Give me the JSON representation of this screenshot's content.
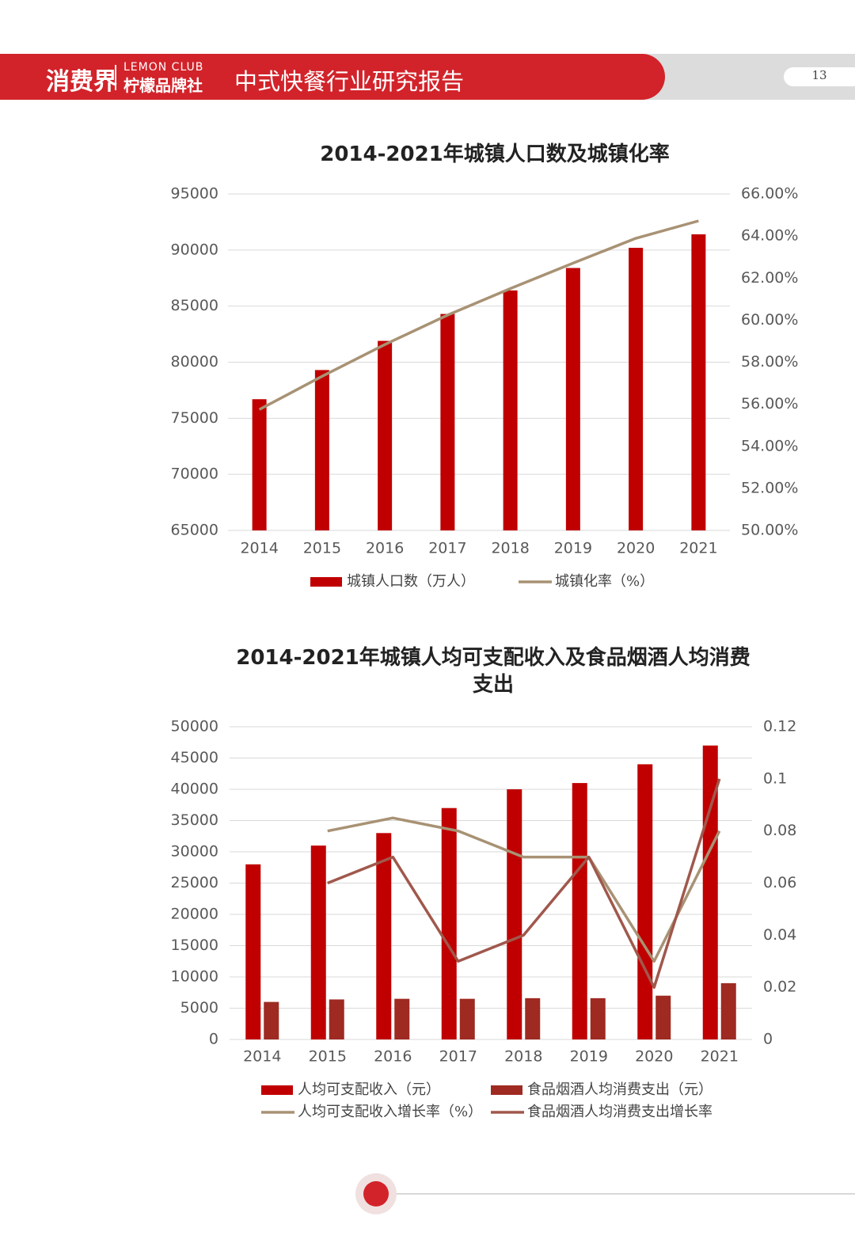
{
  "header": {
    "brand": "消费界",
    "brand_en": "LEMON CLUB",
    "brand_cn": "柠檬品牌社",
    "title": "中式快餐行业研究报告",
    "page_number": "13"
  },
  "chart_data": [
    {
      "type": "combo",
      "title": "2014-2021年城镇人口数及城镇化率",
      "categories": [
        "2014",
        "2015",
        "2016",
        "2017",
        "2018",
        "2019",
        "2020",
        "2021"
      ],
      "series": [
        {
          "name": "城镇人口数（万人）",
          "type": "bar",
          "color": "#c00000",
          "values": [
            76700,
            79300,
            81900,
            84300,
            86400,
            88400,
            90200,
            91400
          ]
        },
        {
          "name": "城镇化率（%）",
          "type": "line",
          "axis": "y2",
          "color": "#a89274",
          "values": [
            55.75,
            57.33,
            58.84,
            60.24,
            61.5,
            62.71,
            63.89,
            64.72
          ]
        }
      ],
      "ylim": [
        65000,
        95000
      ],
      "yticks": [
        65000,
        70000,
        75000,
        80000,
        85000,
        90000,
        95000
      ],
      "y2lim": [
        50,
        66
      ],
      "y2ticks": [
        {
          "value": 50,
          "label": "50.00%"
        },
        {
          "value": 52,
          "label": "52.00%"
        },
        {
          "value": 54,
          "label": "54.00%"
        },
        {
          "value": 56,
          "label": "56.00%"
        },
        {
          "value": 58,
          "label": "58.00%"
        },
        {
          "value": 60,
          "label": "60.00%"
        },
        {
          "value": 62,
          "label": "62.00%"
        },
        {
          "value": 64,
          "label": "64.00%"
        },
        {
          "value": 66,
          "label": "66.00%"
        }
      ],
      "grid": true,
      "legend": "bottom"
    },
    {
      "type": "combo",
      "title": "2014-2021年城镇人均可支配收入及食品烟酒人均消费支出",
      "categories": [
        "2014",
        "2015",
        "2016",
        "2017",
        "2018",
        "2019",
        "2020",
        "2021"
      ],
      "series": [
        {
          "name": "人均可支配收入（元）",
          "type": "bar",
          "color": "#c00000",
          "values": [
            28000,
            31000,
            33000,
            37000,
            40000,
            41000,
            44000,
            47000
          ]
        },
        {
          "name": "食品烟酒人均消费支出（元）",
          "type": "bar",
          "color": "#9e2a22",
          "values": [
            6000,
            6400,
            6500,
            6500,
            6600,
            6600,
            7000,
            9000
          ]
        },
        {
          "name": "人均可支配收入增长率（%）",
          "type": "line",
          "axis": "y2",
          "color": "#a89274",
          "values": [
            null,
            0.08,
            0.085,
            0.08,
            0.07,
            0.07,
            0.03,
            0.08
          ]
        },
        {
          "name": "食品烟酒人均消费支出增长率",
          "type": "line",
          "axis": "y2",
          "color": "#a0584c",
          "values": [
            null,
            0.06,
            0.07,
            0.03,
            0.04,
            0.07,
            0.02,
            0.1
          ]
        }
      ],
      "ylim": [
        0,
        50000
      ],
      "yticks": [
        0,
        5000,
        10000,
        15000,
        20000,
        25000,
        30000,
        35000,
        40000,
        45000,
        50000
      ],
      "y2lim": [
        0,
        0.12
      ],
      "y2ticks": [
        0,
        0.02,
        0.04,
        0.06,
        0.08,
        0.1,
        0.12
      ],
      "grid": true,
      "legend": "bottom"
    }
  ]
}
